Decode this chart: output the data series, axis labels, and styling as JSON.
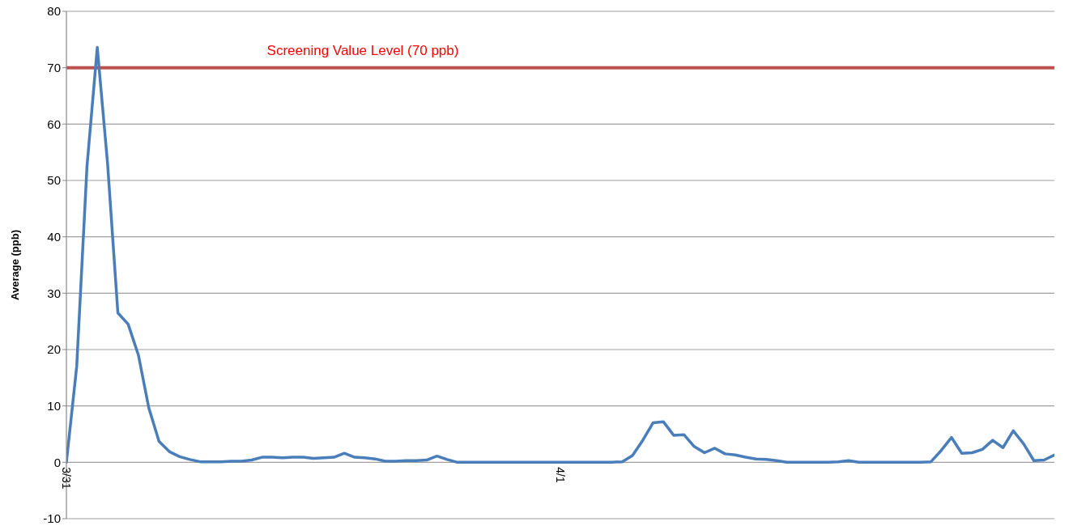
{
  "chart_data": {
    "type": "line",
    "ylabel": "Average (ppb)",
    "categories": [
      "3/31",
      null,
      null,
      null,
      null,
      null,
      null,
      null,
      null,
      null,
      null,
      null,
      null,
      null,
      null,
      null,
      null,
      null,
      null,
      null,
      null,
      null,
      null,
      null,
      null,
      null,
      null,
      null,
      null,
      null,
      null,
      null,
      null,
      null,
      null,
      null,
      null,
      null,
      null,
      null,
      null,
      null,
      null,
      null,
      null,
      null,
      null,
      null,
      "4/1",
      null,
      null,
      null,
      null,
      null,
      null,
      null,
      null,
      null,
      null,
      null,
      null,
      null,
      null,
      null,
      null,
      null,
      null,
      null,
      null,
      null,
      null,
      null,
      null,
      null,
      null,
      null,
      null,
      null,
      null,
      null,
      null,
      null,
      null,
      null,
      null,
      null,
      null,
      null,
      null,
      null,
      null,
      null,
      null,
      null,
      null,
      null,
      null
    ],
    "series": [
      {
        "color": "#4a7ebb",
        "values": [
          0,
          17,
          52.5,
          73.6,
          53,
          26.5,
          24.5,
          19,
          9.7,
          3.7,
          1.9,
          1,
          0.5,
          0.1,
          0.1,
          0.1,
          0.2,
          0.2,
          0.4,
          0.9,
          0.9,
          0.8,
          0.9,
          0.9,
          0.7,
          0.8,
          0.9,
          1.6,
          0.9,
          0.8,
          0.6,
          0.2,
          0.2,
          0.3,
          0.3,
          0.4,
          1.1,
          0.5,
          0,
          0,
          0,
          0,
          0,
          0,
          0,
          0,
          0,
          0,
          0,
          0,
          0,
          0,
          0,
          0,
          0.1,
          1.2,
          3.9,
          7,
          7.2,
          4.8,
          4.9,
          2.8,
          1.7,
          2.5,
          1.5,
          1.3,
          0.9,
          0.6,
          0.5,
          0.3,
          0,
          0,
          0,
          0,
          0,
          0.1,
          0.3,
          0,
          0,
          0,
          0,
          0,
          0,
          0,
          0.1,
          2.1,
          4.4,
          1.6,
          1.7,
          2.3,
          3.9,
          2.6,
          5.6,
          3.3,
          0.3,
          0.4,
          1.3
        ]
      }
    ],
    "ylim": [
      -10,
      80
    ],
    "yticks": [
      -10,
      0,
      10,
      20,
      30,
      40,
      50,
      60,
      70,
      80
    ],
    "grid": "y",
    "legend": false,
    "marker": "none",
    "line_style": "solid",
    "ref_lines": [
      {
        "axis": "y",
        "value": 70,
        "label": "Screening Value Level (70 ppb)",
        "color": "#c0504d"
      }
    ]
  }
}
